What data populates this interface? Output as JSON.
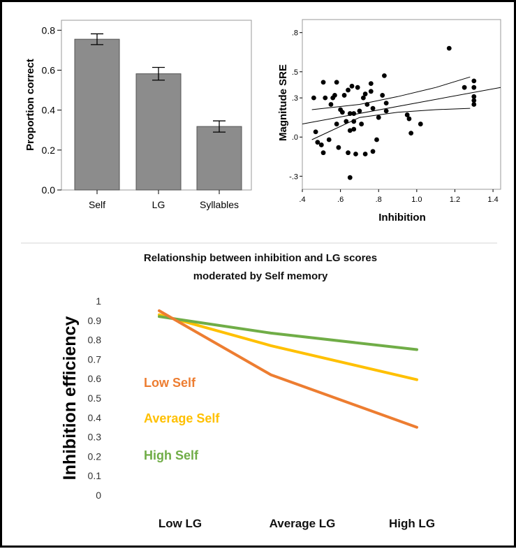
{
  "chart_data": [
    {
      "type": "bar",
      "categories": [
        "Self",
        "LG",
        "Syllables"
      ],
      "values": [
        0.755,
        0.582,
        0.318
      ],
      "errors": [
        0.027,
        0.032,
        0.028
      ],
      "xlabel": "",
      "ylabel": "Proportion correct",
      "ylim": [
        0,
        0.85
      ],
      "yticks": [
        "0.0",
        "0.2",
        "0.4",
        "0.6",
        "0.8"
      ],
      "bar_color": "#8c8c8c",
      "grid": false
    },
    {
      "type": "scatter",
      "xlabel": "Inhibition",
      "ylabel": "Magnitude SRE",
      "xlim": [
        0.4,
        1.44
      ],
      "ylim": [
        -0.4,
        0.9
      ],
      "xticks": [
        ".4",
        ".6",
        ".8",
        "1.0",
        "1.2",
        "1.4"
      ],
      "yticks": [
        "-.3",
        ".0",
        ".3",
        ".5",
        ".8"
      ],
      "points": [
        [
          0.46,
          0.3
        ],
        [
          0.47,
          0.04
        ],
        [
          0.48,
          -0.04
        ],
        [
          0.5,
          -0.06
        ],
        [
          0.51,
          -0.12
        ],
        [
          0.51,
          0.42
        ],
        [
          0.52,
          0.3
        ],
        [
          0.54,
          -0.02
        ],
        [
          0.55,
          0.25
        ],
        [
          0.56,
          0.3
        ],
        [
          0.57,
          0.32
        ],
        [
          0.58,
          0.42
        ],
        [
          0.58,
          0.1
        ],
        [
          0.59,
          -0.08
        ],
        [
          0.6,
          0.21
        ],
        [
          0.61,
          0.19
        ],
        [
          0.62,
          0.32
        ],
        [
          0.63,
          0.12
        ],
        [
          0.64,
          -0.12
        ],
        [
          0.64,
          0.36
        ],
        [
          0.65,
          0.05
        ],
        [
          0.65,
          0.18
        ],
        [
          0.65,
          -0.31
        ],
        [
          0.66,
          0.39
        ],
        [
          0.67,
          0.12
        ],
        [
          0.67,
          0.06
        ],
        [
          0.67,
          0.18
        ],
        [
          0.68,
          -0.13
        ],
        [
          0.69,
          0.38
        ],
        [
          0.7,
          0.2
        ],
        [
          0.71,
          0.1
        ],
        [
          0.72,
          0.3
        ],
        [
          0.73,
          -0.13
        ],
        [
          0.73,
          0.33
        ],
        [
          0.74,
          0.25
        ],
        [
          0.76,
          0.35
        ],
        [
          0.76,
          0.41
        ],
        [
          0.77,
          0.22
        ],
        [
          0.77,
          -0.11
        ],
        [
          0.79,
          -0.02
        ],
        [
          0.8,
          0.15
        ],
        [
          0.82,
          0.32
        ],
        [
          0.83,
          0.47
        ],
        [
          0.84,
          0.26
        ],
        [
          0.84,
          0.2
        ],
        [
          0.95,
          0.17
        ],
        [
          0.96,
          0.14
        ],
        [
          0.97,
          0.03
        ],
        [
          1.02,
          0.1
        ],
        [
          1.17,
          0.68
        ],
        [
          1.25,
          0.38
        ],
        [
          1.3,
          0.43
        ],
        [
          1.3,
          0.38
        ],
        [
          1.3,
          0.31
        ],
        [
          1.3,
          0.28
        ],
        [
          1.3,
          0.25
        ]
      ],
      "fit_line": [
        [
          0.4,
          0.1
        ],
        [
          1.44,
          0.38
        ]
      ],
      "ci_upper": [
        [
          0.45,
          0.21
        ],
        [
          0.7,
          0.25
        ],
        [
          0.9,
          0.31
        ],
        [
          1.1,
          0.38
        ],
        [
          1.28,
          0.46
        ]
      ],
      "ci_lower": [
        [
          0.45,
          -0.02
        ],
        [
          0.7,
          0.15
        ],
        [
          0.9,
          0.19
        ],
        [
          1.1,
          0.21
        ],
        [
          1.28,
          0.22
        ]
      ]
    },
    {
      "type": "line",
      "title_line1": "Relationship between inhibition and LG scores",
      "title_line2": "moderated by Self memory",
      "categories": [
        "Low LG",
        "Average LG",
        "High LG"
      ],
      "ylabel": "Inhibition efficiency",
      "ylim": [
        0,
        1
      ],
      "yticks": [
        "0",
        "0.1",
        "0.2",
        "0.3",
        "0.4",
        "0.5",
        "0.6",
        "0.7",
        "0.8",
        "0.9",
        "1"
      ],
      "grid": false,
      "series": [
        {
          "name": "Low Self",
          "values": [
            0.95,
            0.62,
            0.35
          ],
          "color": "#ed7d31"
        },
        {
          "name": "Average Self",
          "values": [
            0.93,
            0.77,
            0.595
          ],
          "color": "#ffc000"
        },
        {
          "name": "High Self",
          "values": [
            0.92,
            0.835,
            0.75
          ],
          "color": "#70ad47"
        }
      ]
    }
  ]
}
